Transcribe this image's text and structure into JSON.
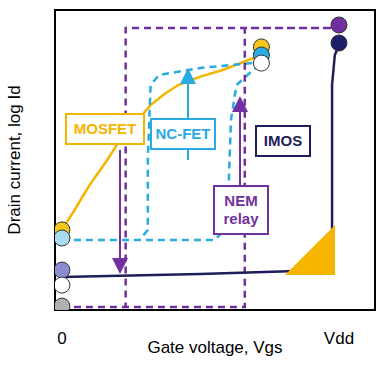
{
  "chart_data": {
    "type": "line",
    "x_label": "Gate voltage, Vgs",
    "y_label": "Drain current, log Id",
    "xlim": [
      -0.025,
      1.13
    ],
    "xticks": [
      {
        "value": 0,
        "label": "0"
      },
      {
        "value": 1,
        "label": "Vdd"
      }
    ],
    "ylim": [
      0,
      10
    ],
    "yticks": [],
    "tick_labels": "x",
    "series": [
      {
        "name": "MOSFET",
        "color": "#f5b400",
        "line_style": "solid",
        "x": [
          0,
          0.05,
          0.1,
          0.16,
          0.21,
          0.27,
          0.32,
          0.37,
          0.42,
          0.5,
          0.58,
          0.65,
          0.72
        ],
        "values": [
          2.67,
          3.4,
          4.17,
          4.95,
          5.67,
          6.3,
          6.83,
          7.2,
          7.5,
          7.78,
          8.0,
          8.25,
          8.5
        ]
      },
      {
        "name": "NC-FET",
        "color": "#29abe2",
        "line_style": "dashed",
        "x": [
          0,
          0.55,
          0.58,
          0.6,
          0.61,
          0.63,
          0.69,
          0.73,
          0.5,
          0.35,
          0.32,
          0.31,
          0.31,
          0.28
        ],
        "values": [
          2.33,
          2.33,
          2.6,
          3.67,
          6.33,
          7.5,
          8.0,
          8.27,
          8.07,
          7.83,
          7.5,
          5.0,
          2.67,
          2.33
        ]
      },
      {
        "name": "NEM relay",
        "color": "#7030a0",
        "line_style": "dashed",
        "x": [
          0,
          0.66,
          0.66,
          1.0,
          0.23,
          0.23
        ],
        "values": [
          0.1,
          0.1,
          9.4,
          9.4,
          9.4,
          0.1
        ]
      },
      {
        "name": "IMOS",
        "color": "#1e1e5a",
        "line_style": "solid",
        "x": [
          0,
          0.5,
          0.96,
          0.975,
          0.975,
          0.985,
          1.0,
          1.02
        ],
        "values": [
          1.1,
          1.2,
          1.33,
          2.5,
          7.5,
          8.5,
          8.83,
          8.9
        ]
      }
    ],
    "markers": {
      "x": [
        0,
        0,
        0,
        0,
        0,
        0.72,
        0.72,
        0.72,
        1.0,
        1.0
      ],
      "values": [
        2.67,
        2.4,
        1.33,
        0.83,
        0.13,
        8.77,
        8.5,
        8.23,
        9.5,
        8.9
      ],
      "colors": [
        "#f5c518",
        "#a8dcf0",
        "#8c8cd0",
        "#ffffff",
        "#b0b0b0",
        "#f5c518",
        "#29abe2",
        "#ffffff",
        "#7030a0",
        "#1e1e6a"
      ]
    }
  }
}
